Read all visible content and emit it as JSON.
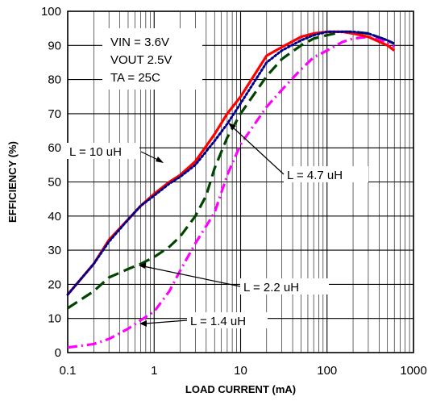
{
  "chart_data": {
    "type": "line",
    "title": "",
    "xlabel": "LOAD CURRENT (mA)",
    "ylabel": "EFFICIENCY (%)",
    "x_scale": "log",
    "xlim": [
      0.1,
      1000
    ],
    "ylim": [
      0,
      100
    ],
    "grid": true,
    "x_ticks": [
      "0.1",
      "1",
      "10",
      "100",
      "1000"
    ],
    "y_ticks": [
      "0",
      "10",
      "20",
      "30",
      "40",
      "50",
      "60",
      "70",
      "80",
      "90",
      "100"
    ],
    "conditions": [
      "VIN = 3.6V",
      "VOUT 2.5V",
      "TA = 25C"
    ],
    "series": [
      {
        "name": "L = 10 uH",
        "color": "#ff0000",
        "style": "solid",
        "x": [
          0.1,
          0.2,
          0.3,
          0.5,
          0.7,
          1,
          1.5,
          2,
          3,
          5,
          7,
          10,
          20,
          30,
          50,
          70,
          100,
          150,
          200,
          300,
          500,
          600
        ],
        "y": [
          17,
          26,
          33,
          39,
          43,
          46.5,
          50,
          52,
          56,
          64,
          70,
          75,
          87,
          89.5,
          92.5,
          93.5,
          94,
          94,
          93.5,
          92.5,
          90,
          88.5
        ]
      },
      {
        "name": "L = 4.7 uH",
        "color": "#00008b",
        "style": "dotted",
        "x": [
          0.1,
          0.2,
          0.3,
          0.5,
          0.7,
          1,
          1.5,
          2,
          3,
          5,
          7,
          10,
          20,
          30,
          50,
          70,
          100,
          150,
          200,
          300,
          500,
          600
        ],
        "y": [
          17,
          26,
          32.5,
          39,
          43,
          46,
          49.5,
          51.5,
          55,
          62,
          67,
          73,
          85,
          88.5,
          91.5,
          93,
          94,
          94,
          94,
          93.5,
          91.5,
          90.5
        ]
      },
      {
        "name": "L = 2.2 uH",
        "color": "#004400",
        "style": "dashed",
        "x": [
          0.1,
          0.2,
          0.3,
          0.5,
          0.7,
          1,
          1.5,
          2,
          3,
          4,
          5,
          7,
          10,
          20,
          30,
          50,
          70,
          100,
          150,
          200,
          300,
          500,
          600
        ],
        "y": [
          13,
          18,
          22,
          24.5,
          26,
          28,
          31,
          34,
          40,
          46,
          54,
          63,
          70,
          81,
          86,
          90,
          92,
          93,
          94,
          94,
          93.5,
          91.5,
          90.5
        ]
      },
      {
        "name": "L = 1.4 uH",
        "color": "#ff00ff",
        "style": "dash-dot",
        "x": [
          0.1,
          0.2,
          0.3,
          0.5,
          0.7,
          1,
          1.5,
          2,
          3,
          5,
          7,
          10,
          20,
          30,
          50,
          70,
          100,
          150,
          200,
          300,
          500,
          600
        ],
        "y": [
          1.5,
          2.5,
          4,
          7,
          9.5,
          12,
          18,
          24,
          32,
          41,
          52,
          61,
          72,
          77,
          83,
          86.5,
          88.5,
          91,
          92,
          92.5,
          91,
          89.5
        ]
      }
    ],
    "annotations": [
      {
        "text": "L = 10 uH",
        "series": 0
      },
      {
        "text": "L = 4.7 uH",
        "series": 1
      },
      {
        "text": "L = 2.2 uH",
        "series": 2
      },
      {
        "text": "L = 1.4 uH",
        "series": 3
      }
    ]
  }
}
